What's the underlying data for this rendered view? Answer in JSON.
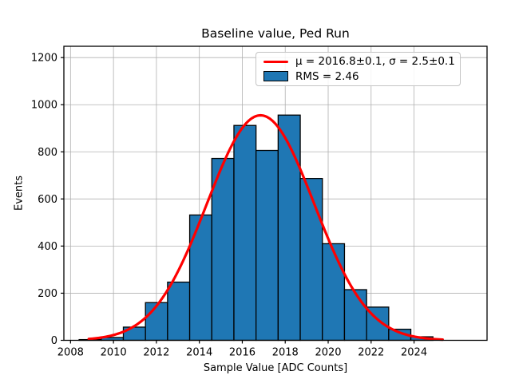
{
  "title": "Baseline value, Ped Run",
  "xlabel": "Sample Value [ADC Counts]",
  "ylabel": "Events",
  "legend": {
    "fit_label": "μ = 2016.8±0.1, σ = 2.5±0.1",
    "hist_label": "RMS = 2.46"
  },
  "colors": {
    "bar_fill": "#1f77b4",
    "bar_edge": "#000000",
    "curve": "#ff0000",
    "grid": "#b0b0b0",
    "frame": "#000000",
    "text": "#000000"
  },
  "chart_data": {
    "type": "bar",
    "subtype": "histogram",
    "title": "Baseline value, Ped Run",
    "xlabel": "Sample Value [ADC Counts]",
    "ylabel": "Events",
    "grid": true,
    "legend_position": "upper right",
    "xlim": [
      2007.69,
      2027.4
    ],
    "ylim": [
      0,
      1248
    ],
    "x_ticks": [
      2008,
      2010,
      2012,
      2014,
      2016,
      2018,
      2020,
      2022,
      2024
    ],
    "x_tick_labels": [
      "2008",
      "2010",
      "2012",
      "2014",
      "2016",
      "2018",
      "2020",
      "2022",
      "2024"
    ],
    "y_ticks": [
      0,
      200,
      400,
      600,
      800,
      1000,
      1200
    ],
    "y_tick_labels": [
      "0",
      "200",
      "400",
      "600",
      "800",
      "1000",
      "1200"
    ],
    "bin_start": 2008.4,
    "bin_width": 1.03,
    "counts": [
      3,
      12,
      56,
      160,
      247,
      532,
      772,
      912,
      806,
      956,
      687,
      410,
      215,
      141,
      47,
      15
    ],
    "fit_curve": {
      "type": "gaussian",
      "mu": 2016.85,
      "sigma": 2.5,
      "amplitude": 955,
      "mu_label": "2016.8±0.1",
      "sigma_label": "2.5±0.1",
      "rms": 2.46,
      "x_range": [
        2008.85,
        2025.35
      ]
    }
  }
}
